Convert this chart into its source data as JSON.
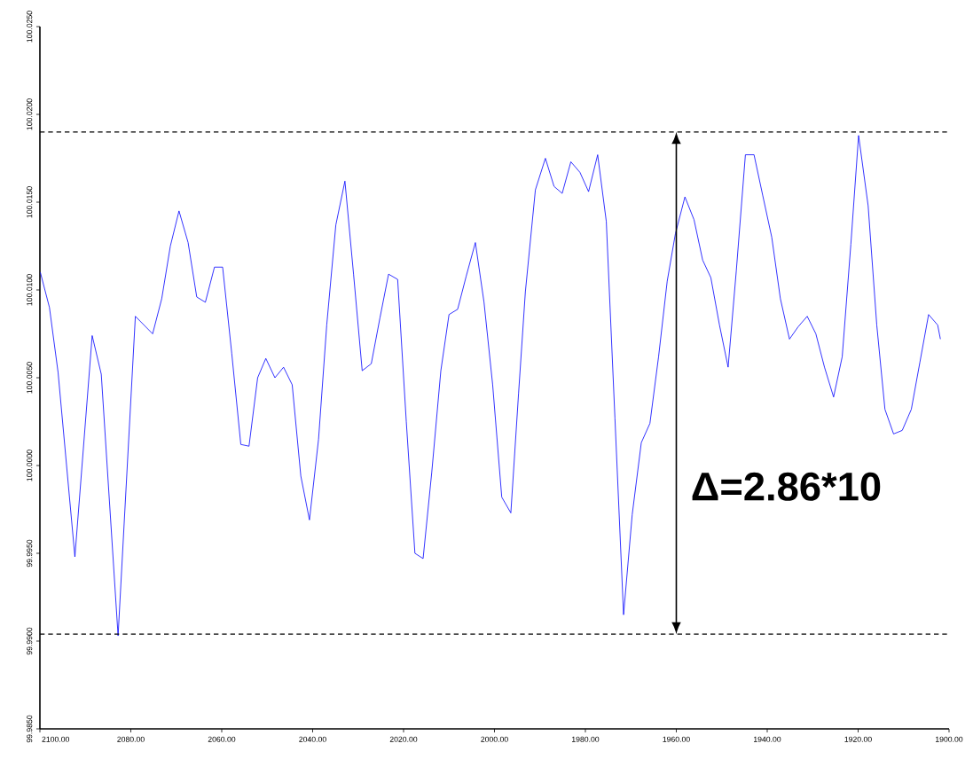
{
  "chart_data": {
    "type": "line",
    "x": [
      2099.9,
      2097.9,
      2096.0,
      2092.3,
      2088.5,
      2086.5,
      2082.8,
      2079.0,
      2075.2,
      2073.2,
      2071.3,
      2069.4,
      2067.4,
      2065.5,
      2063.6,
      2061.6,
      2059.8,
      2057.8,
      2055.8,
      2054.0,
      2052.1,
      2050.3,
      2048.3,
      2046.4,
      2044.5,
      2042.6,
      2040.7,
      2038.7,
      2036.9,
      2034.9,
      2032.9,
      2031.0,
      2029.1,
      2027.1,
      2025.2,
      2023.3,
      2021.3,
      2019.4,
      2017.5,
      2015.7,
      2013.8,
      2011.8,
      2010.0,
      2008.1,
      2006.2,
      2004.2,
      2002.3,
      2000.4,
      1998.4,
      1996.4,
      1994.7,
      1993.2,
      1991.0,
      1988.8,
      1986.9,
      1985.1,
      1983.2,
      1981.2,
      1979.3,
      1977.3,
      1975.4,
      1973.5,
      1971.6,
      1969.7,
      1967.7,
      1965.8,
      1963.9,
      1962.0,
      1960.2,
      1958.1,
      1956.1,
      1954.2,
      1952.4,
      1950.5,
      1948.6,
      1946.8,
      1944.8,
      1942.9,
      1941.0,
      1939.0,
      1937.1,
      1935.1,
      1933.2,
      1931.2,
      1929.3,
      1927.4,
      1925.4,
      1923.5,
      1921.6,
      1919.9,
      1917.8,
      1915.9,
      1914.1,
      1912.2,
      1910.3,
      1908.3,
      1906.4,
      1904.5,
      1902.5,
      1901.9
    ],
    "values": [
      100.011,
      100.009,
      100.0053,
      99.9948,
      100.0074,
      100.0052,
      99.9903,
      100.0085,
      100.0075,
      100.0095,
      100.0125,
      100.0145,
      100.0127,
      100.0096,
      100.0093,
      100.0113,
      100.0113,
      100.0064,
      100.0012,
      100.0011,
      100.005,
      100.0061,
      100.005,
      100.0056,
      100.0046,
      99.9994,
      99.9969,
      100.0015,
      100.008,
      100.0137,
      100.0162,
      100.0109,
      100.0054,
      100.0058,
      100.0084,
      100.0109,
      100.0106,
      100.0025,
      99.995,
      99.9947,
      99.9996,
      100.0054,
      100.0086,
      100.0089,
      100.0108,
      100.0127,
      100.0093,
      100.0046,
      99.9982,
      99.9973,
      100.0041,
      100.0099,
      100.0157,
      100.0175,
      100.0159,
      100.0155,
      100.0173,
      100.0167,
      100.0156,
      100.0177,
      100.0139,
      100.0027,
      99.9915,
      99.9972,
      100.0013,
      100.0024,
      100.0062,
      100.0105,
      100.0132,
      100.0153,
      100.014,
      100.0117,
      100.0107,
      100.008,
      100.0056,
      100.0111,
      100.0177,
      100.0177,
      100.0154,
      100.013,
      100.0095,
      100.0072,
      100.0079,
      100.0085,
      100.0075,
      100.0056,
      100.0039,
      100.0062,
      100.0126,
      100.0188,
      100.0148,
      100.008,
      100.0032,
      100.0018,
      100.002,
      100.0032,
      100.0059,
      100.0086,
      100.008,
      100.0072
    ],
    "color": "#0000ff",
    "line_style": "solid",
    "marker": "none",
    "xlim": [
      2100,
      1900
    ],
    "ylim": [
      99.985,
      100.025
    ],
    "xticks": [
      {
        "value": 2100,
        "label": "2100.00"
      },
      {
        "value": 2080,
        "label": "2080.00"
      },
      {
        "value": 2060,
        "label": "2060.00"
      },
      {
        "value": 2040,
        "label": "2040.00"
      },
      {
        "value": 2020,
        "label": "2020.00"
      },
      {
        "value": 2000,
        "label": "2000.00"
      },
      {
        "value": 1980,
        "label": "1980.00"
      },
      {
        "value": 1960,
        "label": "1960.00"
      },
      {
        "value": 1940,
        "label": "1940.00"
      },
      {
        "value": 1920,
        "label": "1920.00"
      },
      {
        "value": 1900,
        "label": "1900.00"
      }
    ],
    "yticks": [
      {
        "value": 99.985,
        "label": "99.9850"
      },
      {
        "value": 99.99,
        "label": "99.9900"
      },
      {
        "value": 99.995,
        "label": "99.9950"
      },
      {
        "value": 100.0,
        "label": "100.0000"
      },
      {
        "value": 100.005,
        "label": "100.0050"
      },
      {
        "value": 100.01,
        "label": "100.0100"
      },
      {
        "value": 100.015,
        "label": "100.0150"
      },
      {
        "value": 100.02,
        "label": "100.0200"
      },
      {
        "value": 100.025,
        "label": "100.0250"
      }
    ],
    "ref_lines": [
      {
        "axis": "y",
        "value": 99.9904,
        "color": "#000000",
        "line_style": "dashed"
      },
      {
        "axis": "y",
        "value": 100.019,
        "color": "#000000",
        "line_style": "dashed"
      }
    ],
    "annotations": [
      "Δ=2.86*10"
    ]
  }
}
